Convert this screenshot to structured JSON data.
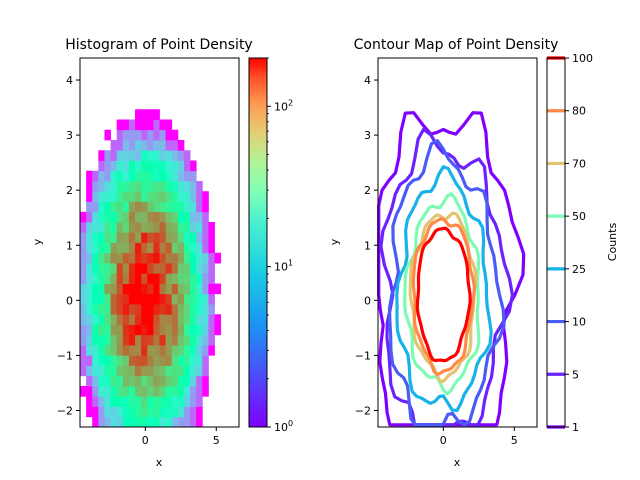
{
  "chart_data": [
    {
      "type": "heatmap",
      "title": "Histogram of Point Density",
      "xlabel": "x",
      "ylabel": "y",
      "xlim": [
        -4.6,
        6.6
      ],
      "ylim": [
        -2.3,
        4.4
      ],
      "xticks": [
        0,
        5
      ],
      "xtick_labels": [
        "0",
        "5"
      ],
      "yticks": [
        -2,
        -1,
        0,
        1,
        2,
        3,
        4
      ],
      "ytick_labels": [
        "−2",
        "−1",
        "0",
        "1",
        "2",
        "3",
        "4"
      ],
      "bins": {
        "x_min": -4.6,
        "x_max": 6.6,
        "nx": 26,
        "y_min": -2.3,
        "y_max": 4.4,
        "ny": 36
      },
      "distribution": {
        "center_x": 0.0,
        "center_y": 0.1,
        "sigma_x": 1.55,
        "sigma_y": 1.0,
        "peak_count": 200
      },
      "colorbar": {
        "scale": "log",
        "range": [
          1,
          200
        ],
        "ticks": [
          1,
          10,
          100
        ],
        "tick_labels": [
          "10^0",
          "10^1",
          "10^2"
        ],
        "colormap": "rainbow"
      }
    },
    {
      "type": "contour",
      "title": "Contour Map of Point Density",
      "xlabel": "x",
      "ylabel": "y",
      "xlim": [
        -4.6,
        6.6
      ],
      "ylim": [
        -2.3,
        4.4
      ],
      "xticks": [
        0,
        5
      ],
      "xtick_labels": [
        "0",
        "5"
      ],
      "yticks": [
        -2,
        -1,
        0,
        1,
        2,
        3,
        4
      ],
      "ytick_labels": [
        "−2",
        "−1",
        "0",
        "1",
        "2",
        "3",
        "4"
      ],
      "levels": [
        1,
        5,
        10,
        25,
        50,
        70,
        80,
        100
      ],
      "level_colors": [
        "#8000ff",
        "#6a23ff",
        "#4a5cf5",
        "#17b2e8",
        "#7cfcb2",
        "#e0c470",
        "#ff8a48",
        "#ff0000"
      ],
      "colorbar": {
        "label": "Counts",
        "ticks": [
          1,
          5,
          10,
          25,
          50,
          70,
          80,
          100
        ],
        "tick_labels": [
          "1",
          "5",
          "10",
          "25",
          "50",
          "70",
          "80",
          "100"
        ]
      }
    }
  ]
}
